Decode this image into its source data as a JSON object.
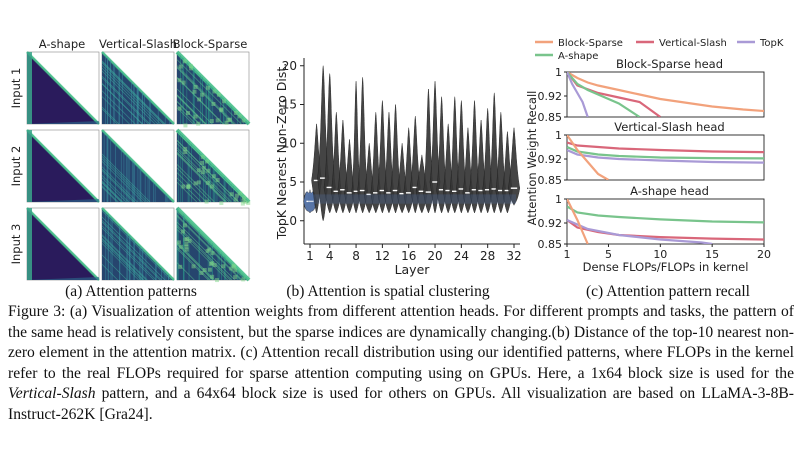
{
  "panel_a": {
    "col_labels": [
      "A-shape",
      "Vertical-Slash",
      "Block-Sparse"
    ],
    "row_labels": [
      "Input 1",
      "Input 2",
      "Input 3"
    ],
    "subcaption": "(a) Attention patterns"
  },
  "panel_b": {
    "subcaption": "(b) Attention is spatial clustering"
  },
  "panel_c": {
    "subcaption": "(c) Attention pattern recall"
  },
  "caption": {
    "part1": "Figure 3: (a) Visualization of attention weights from different attention heads. For different prompts and tasks, the pattern of the same head is relatively consistent, but the sparse indices are dynamically changing.(b) Distance of the top-10 nearest non-zero element in the attention matrix. (c) Attention recall distribution using our identified patterns, where FLOPs in the kernel refer to the real FLOPs required for sparse attention computing using on GPUs. Here, a 1x64 block size is used for the ",
    "italic": "Vertical-Slash",
    "part2": " pattern, and a 64x64 block size is used for others on GPUs. All visualization are based on LLaMA-3-8B-Instruct-262K [Gra24]."
  },
  "chart_data": [
    {
      "type": "violin",
      "xlabel": "Layer",
      "ylabel": "TopK Nearest Non-Zero Dist.",
      "xticks": [
        1,
        4,
        8,
        12,
        16,
        20,
        24,
        28,
        32
      ],
      "yticks": [
        0,
        5,
        10,
        15,
        20
      ],
      "ylim": [
        -3,
        21
      ],
      "layers": [
        1,
        2,
        3,
        4,
        5,
        6,
        7,
        8,
        9,
        10,
        11,
        12,
        13,
        14,
        15,
        16,
        17,
        18,
        19,
        20,
        21,
        22,
        23,
        24,
        25,
        26,
        27,
        28,
        29,
        30,
        31,
        32
      ],
      "medians": [
        2.5,
        5.2,
        5.5,
        4.3,
        3.8,
        4.0,
        3.6,
        3.8,
        3.9,
        3.4,
        3.6,
        3.9,
        3.6,
        3.9,
        3.5,
        3.6,
        4.3,
        3.8,
        3.7,
        5.0,
        4.0,
        3.9,
        3.8,
        4.1,
        3.6,
        4.0,
        3.9,
        4.0,
        4.1,
        3.9,
        3.9,
        4.2
      ],
      "max": [
        4.0,
        12.5,
        20.0,
        19.0,
        14.0,
        13.0,
        10.5,
        18.0,
        18.5,
        10.0,
        14.0,
        15.5,
        14.0,
        15.0,
        10.0,
        12.0,
        13.5,
        8.5,
        17.0,
        18.0,
        16.0,
        12.5,
        16.0,
        15.5,
        12.0,
        15.5,
        13.0,
        14.5,
        16.5,
        14.0,
        11.5,
        12.0
      ],
      "min": [
        1.0,
        1.0,
        0.0,
        1.0,
        1.0,
        1.0,
        1.0,
        1.0,
        1.0,
        1.0,
        1.0,
        1.0,
        1.0,
        1.0,
        1.0,
        1.0,
        1.0,
        1.0,
        1.0,
        1.0,
        1.0,
        1.0,
        1.0,
        1.0,
        1.0,
        1.0,
        1.0,
        1.0,
        1.0,
        1.0,
        1.0,
        2.0
      ],
      "body_halfwidth": [
        0.45,
        0.35,
        0.4,
        0.4,
        0.35,
        0.35,
        0.35,
        0.3,
        0.35,
        0.35,
        0.35,
        0.35,
        0.35,
        0.35,
        0.35,
        0.35,
        0.35,
        0.4,
        0.35,
        0.35,
        0.35,
        0.35,
        0.35,
        0.35,
        0.35,
        0.35,
        0.35,
        0.35,
        0.35,
        0.35,
        0.35,
        0.4
      ]
    },
    {
      "type": "line",
      "legend": [
        "Block-Sparse",
        "Vertical-Slash",
        "TopK",
        "A-shape"
      ],
      "xlabel": "Dense FLOPs/FLOPs in kernel",
      "ylabel": "Attention Weight Recall",
      "xlim": [
        1,
        20
      ],
      "xticks": [
        1,
        5,
        10,
        15,
        20
      ],
      "subplots": [
        {
          "title": "Block-Sparse head",
          "ylim": [
            0.85,
            1.0
          ],
          "yticks": [
            0.85,
            0.92,
            1
          ],
          "series": [
            {
              "name": "Block-Sparse",
              "x": [
                1,
                2,
                3,
                4,
                6,
                8,
                10,
                12,
                15,
                18,
                20
              ],
              "y": [
                1.0,
                0.98,
                0.965,
                0.955,
                0.94,
                0.925,
                0.91,
                0.9,
                0.885,
                0.875,
                0.87
              ]
            },
            {
              "name": "Vertical-Slash",
              "x": [
                1,
                2,
                4,
                6,
                8,
                9,
                10
              ],
              "y": [
                1.0,
                0.955,
                0.93,
                0.915,
                0.9,
                0.875,
                0.85
              ]
            },
            {
              "name": "A-shape",
              "x": [
                1,
                2,
                3,
                4,
                5,
                6,
                8
              ],
              "y": [
                1.0,
                0.96,
                0.94,
                0.925,
                0.91,
                0.895,
                0.85
              ]
            },
            {
              "name": "TopK",
              "x": [
                1,
                1.5,
                2,
                2.5,
                3
              ],
              "y": [
                1.0,
                0.96,
                0.93,
                0.9,
                0.85
              ]
            }
          ]
        },
        {
          "title": "Vertical-Slash head",
          "ylim": [
            0.85,
            1.0
          ],
          "yticks": [
            0.85,
            0.92,
            1
          ],
          "series": [
            {
              "name": "Vertical-Slash",
              "x": [
                1,
                2,
                4,
                6,
                10,
                15,
                20
              ],
              "y": [
                0.975,
                0.965,
                0.96,
                0.955,
                0.95,
                0.945,
                0.943
              ]
            },
            {
              "name": "A-shape",
              "x": [
                1,
                2,
                4,
                6,
                10,
                15,
                20
              ],
              "y": [
                0.96,
                0.945,
                0.935,
                0.93,
                0.925,
                0.923,
                0.922
              ]
            },
            {
              "name": "TopK",
              "x": [
                1,
                2,
                4,
                6,
                10,
                15,
                20
              ],
              "y": [
                0.95,
                0.935,
                0.925,
                0.92,
                0.915,
                0.91,
                0.908
              ]
            },
            {
              "name": "Block-Sparse",
              "x": [
                1,
                2,
                3,
                4,
                5
              ],
              "y": [
                1.0,
                0.95,
                0.91,
                0.87,
                0.85
              ]
            }
          ]
        },
        {
          "title": "A-shape head",
          "ylim": [
            0.85,
            1.0
          ],
          "yticks": [
            0.85,
            0.92,
            1
          ],
          "series": [
            {
              "name": "A-shape",
              "x": [
                1,
                2,
                4,
                6,
                10,
                15,
                20
              ],
              "y": [
                0.975,
                0.955,
                0.945,
                0.94,
                0.932,
                0.925,
                0.922
              ]
            },
            {
              "name": "Vertical-Slash",
              "x": [
                1,
                2,
                4,
                6,
                10,
                15,
                20
              ],
              "y": [
                0.93,
                0.905,
                0.89,
                0.88,
                0.873,
                0.868,
                0.865
              ]
            },
            {
              "name": "TopK",
              "x": [
                1,
                3,
                6,
                10,
                14,
                15
              ],
              "y": [
                0.93,
                0.9,
                0.88,
                0.865,
                0.855,
                0.85
              ]
            },
            {
              "name": "Block-Sparse",
              "x": [
                1,
                2,
                2.5,
                3
              ],
              "y": [
                1.0,
                0.93,
                0.89,
                0.85
              ]
            }
          ]
        }
      ]
    }
  ],
  "colors": {
    "Block-Sparse": "#f2a27c",
    "Vertical-Slash": "#d9677a",
    "TopK": "#a99ad6",
    "A-shape": "#79c48c",
    "violin_fill": "#353535",
    "violin_low": "#4a6aa0"
  }
}
